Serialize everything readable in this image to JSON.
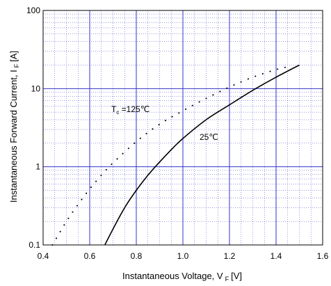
{
  "chart_data": {
    "type": "line",
    "xlabel": "Instantaneous Voltage, V",
    "xlabel_sub": "F",
    "xlabel_unit": "[V]",
    "ylabel": "Instantaneous Forward Current, I",
    "ylabel_sub": "F",
    "ylabel_unit": "[A]",
    "xlim": [
      0.4,
      1.6
    ],
    "ylim": [
      0.1,
      100
    ],
    "y_scale": "log",
    "x_ticks": [
      {
        "value": 0.4,
        "label": "0.4"
      },
      {
        "value": 0.6,
        "label": "0.6"
      },
      {
        "value": 0.8,
        "label": "0.8"
      },
      {
        "value": 1.0,
        "label": "1.0"
      },
      {
        "value": 1.2,
        "label": "1.2"
      },
      {
        "value": 1.4,
        "label": "1.4"
      },
      {
        "value": 1.6,
        "label": "1.6"
      }
    ],
    "y_ticks": [
      {
        "value": 0.1,
        "label": "0.1"
      },
      {
        "value": 1,
        "label": "1"
      },
      {
        "value": 10,
        "label": "10"
      },
      {
        "value": 100,
        "label": "100"
      }
    ],
    "grid": true,
    "colors": {
      "major_grid": "#3333cc",
      "minor_grid": "#3333cc",
      "curve": "#000000"
    },
    "series": [
      {
        "label": "25℃",
        "style": "solid",
        "x": [
          0.665,
          0.7,
          0.75,
          0.8,
          0.85,
          0.9,
          0.95,
          1.0,
          1.1,
          1.2,
          1.3,
          1.4,
          1.5
        ],
        "y": [
          0.1,
          0.16,
          0.3,
          0.5,
          0.78,
          1.15,
          1.65,
          2.3,
          4.0,
          6.2,
          9.5,
          14.0,
          20.0
        ]
      },
      {
        "label_prefix": "T",
        "label_sub": "c",
        "label_suffix": " =125℃",
        "style": "dotted",
        "x": [
          0.44,
          0.5,
          0.55,
          0.6,
          0.65,
          0.7,
          0.8,
          0.9,
          1.0,
          1.1,
          1.2,
          1.3,
          1.4,
          1.45
        ],
        "y": [
          0.1,
          0.2,
          0.33,
          0.52,
          0.78,
          1.12,
          2.1,
          3.5,
          5.2,
          7.5,
          10.5,
          14.0,
          17.5,
          19.0
        ]
      }
    ]
  }
}
